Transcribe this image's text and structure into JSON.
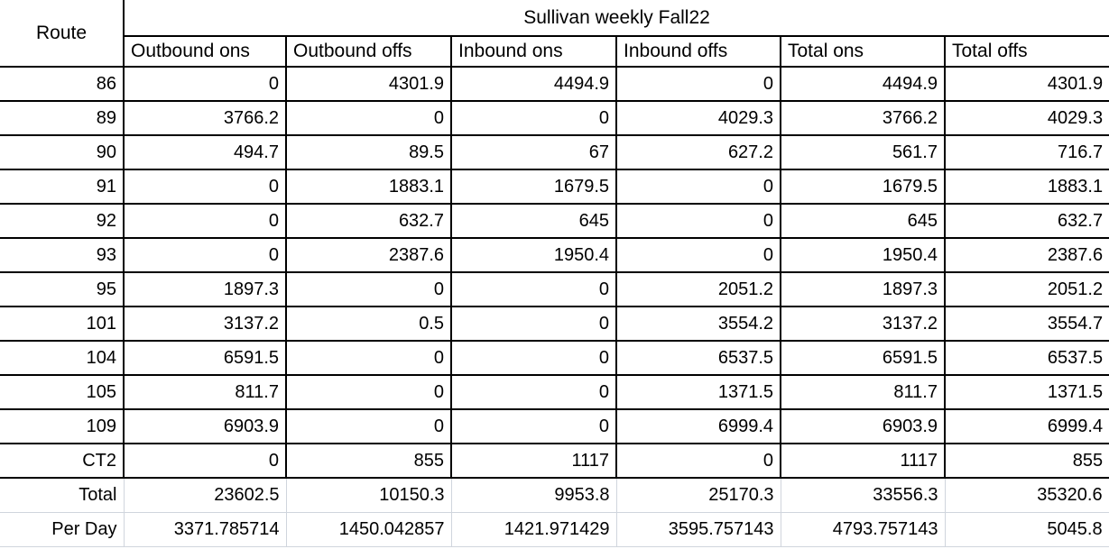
{
  "title": "Sullivan weekly Fall22",
  "route_header": "Route",
  "columns": [
    {
      "label": "Outbound ons",
      "bold": false
    },
    {
      "label": "Outbound offs",
      "bold": false
    },
    {
      "label": "Inbound ons",
      "bold": false
    },
    {
      "label": "Inbound offs",
      "bold": false
    },
    {
      "label": "Total ons",
      "bold": true
    },
    {
      "label": "Total offs",
      "bold": true
    }
  ],
  "colors": {
    "green": "#00B050",
    "red": "#FF0000",
    "blue": "#00B0F0",
    "grid_black": "#000000",
    "grid_gray": "#D0D5DD"
  },
  "table": {
    "rows": [
      {
        "route": "86",
        "color": "green",
        "values": [
          "0",
          "4301.9",
          "4494.9",
          "0",
          "4494.9",
          "4301.9"
        ]
      },
      {
        "route": "89",
        "color": "red",
        "values": [
          "3766.2",
          "0",
          "0",
          "4029.3",
          "3766.2",
          "4029.3"
        ]
      },
      {
        "route": "90",
        "color": "blue",
        "values": [
          "494.7",
          "89.5",
          "67",
          "627.2",
          "561.7",
          "716.7"
        ]
      },
      {
        "route": "91",
        "color": "green",
        "values": [
          "0",
          "1883.1",
          "1679.5",
          "0",
          "1679.5",
          "1883.1"
        ]
      },
      {
        "route": "92",
        "color": "blue",
        "values": [
          "0",
          "632.7",
          "645",
          "0",
          "645",
          "632.7"
        ]
      },
      {
        "route": "93",
        "color": "blue",
        "values": [
          "0",
          "2387.6",
          "1950.4",
          "0",
          "1950.4",
          "2387.6"
        ]
      },
      {
        "route": "95",
        "color": "blue",
        "values": [
          "1897.3",
          "0",
          "0",
          "2051.2",
          "1897.3",
          "2051.2"
        ]
      },
      {
        "route": "101",
        "color": "red",
        "values": [
          "3137.2",
          "0.5",
          "0",
          "3554.2",
          "3137.2",
          "3554.7"
        ]
      },
      {
        "route": "104",
        "color": "red",
        "values": [
          "6591.5",
          "0",
          "0",
          "6537.5",
          "6591.5",
          "6537.5"
        ]
      },
      {
        "route": "105",
        "color": "blue",
        "values": [
          "811.7",
          "0",
          "0",
          "1371.5",
          "811.7",
          "1371.5"
        ]
      },
      {
        "route": "109",
        "color": "red",
        "values": [
          "6903.9",
          "0",
          "0",
          "6999.4",
          "6903.9",
          "6999.4"
        ]
      },
      {
        "route": "CT2",
        "color": "green",
        "values": [
          "0",
          "855",
          "1117",
          "0",
          "1117",
          "855"
        ]
      }
    ],
    "summary_rows": [
      {
        "label": "Total",
        "values": [
          "23602.5",
          "10150.3",
          "9953.8",
          "25170.3",
          "33556.3",
          "35320.6"
        ]
      },
      {
        "label": "Per Day",
        "values": [
          "3371.785714",
          "1450.042857",
          "1421.971429",
          "3595.757143",
          "4793.757143",
          "5045.8"
        ]
      }
    ]
  }
}
